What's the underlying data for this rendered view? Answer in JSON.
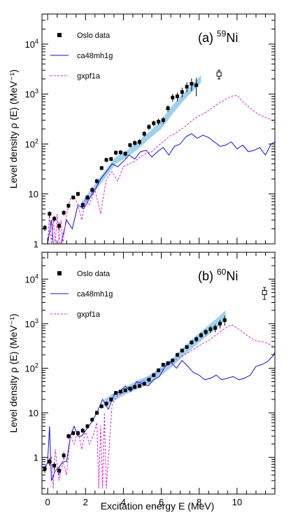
{
  "chart_data": [
    {
      "type": "line",
      "panel_label": "(a)",
      "nucleus_mass": "59",
      "nucleus_symbol": "Ni",
      "xlabel": "Excitation energy E (MeV)",
      "ylabel": "Level density ρ (E) (MeV⁻¹)",
      "xlim": [
        -0.3,
        12.0
      ],
      "ylim": [
        1,
        40000
      ],
      "yscale": "log",
      "x_ticks": [
        0,
        2,
        4,
        6,
        8,
        10
      ],
      "y_ticks": [
        {
          "value": 1,
          "base": "1",
          "exp": ""
        },
        {
          "value": 10,
          "base": "10",
          "exp": ""
        },
        {
          "value": 100,
          "base": "10",
          "exp": "2"
        },
        {
          "value": 1000,
          "base": "10",
          "exp": "3"
        },
        {
          "value": 10000,
          "base": "10",
          "exp": "4"
        }
      ],
      "legend": [
        {
          "name": "Oslo data",
          "style": "square-marker",
          "color": "#000000"
        },
        {
          "name": "ca48mh1g",
          "style": "solid-line",
          "color": "#1010dd"
        },
        {
          "name": "gxpf1a",
          "style": "dashed-line",
          "color": "#dd22dd"
        }
      ],
      "oslo_data": {
        "x": [
          -0.15,
          0.1,
          0.35,
          0.6,
          0.85,
          1.1,
          1.35,
          1.6,
          1.85,
          2.1,
          2.35,
          2.6,
          2.85,
          3.1,
          3.35,
          3.6,
          3.85,
          4.1,
          4.35,
          4.6,
          4.85,
          5.1,
          5.35,
          5.6,
          5.85,
          6.1,
          6.35,
          6.6,
          6.85,
          7.1,
          7.35,
          7.6,
          7.85
        ],
        "y": [
          2.1,
          4.0,
          3.2,
          2.3,
          4.2,
          5.8,
          8.5,
          10,
          6,
          8.5,
          12,
          18,
          33,
          48,
          50,
          67,
          68,
          64,
          95,
          105,
          110,
          160,
          220,
          260,
          280,
          300,
          520,
          850,
          900,
          1100,
          1400,
          1600,
          1500
        ],
        "yerr": [
          0.3,
          0.5,
          0.4,
          0.4,
          0.5,
          0.6,
          0.8,
          1,
          0.8,
          1,
          1.5,
          2,
          3,
          5,
          5,
          7,
          7,
          7,
          10,
          12,
          15,
          20,
          30,
          35,
          40,
          45,
          80,
          150,
          180,
          250,
          320,
          450,
          600
        ]
      },
      "open_point": {
        "x": 9.05,
        "y": 2500,
        "yerr": 500
      },
      "band": {
        "x": [
          1.8,
          2.4,
          3.0,
          3.6,
          4.2,
          4.8,
          5.4,
          6.0,
          6.6,
          7.2,
          7.8,
          8.1
        ],
        "ylow": [
          5.0,
          10,
          20,
          40,
          55,
          80,
          130,
          200,
          400,
          750,
          1300,
          1700
        ],
        "yhigh": [
          7.0,
          14,
          28,
          55,
          75,
          115,
          180,
          300,
          600,
          1050,
          1800,
          2400
        ]
      },
      "series": [
        {
          "name": "ca48mh1g",
          "x": [
            -0.3,
            0.0,
            0.2,
            0.3,
            0.5,
            0.7,
            1.0,
            1.3,
            1.6,
            1.9,
            2.2,
            2.5,
            2.8,
            3.1,
            3.4,
            3.7,
            4.0,
            4.3,
            4.6,
            4.9,
            5.2,
            5.5,
            5.8,
            6.1,
            6.4,
            6.7,
            7.0,
            7.3,
            7.6,
            7.9,
            8.2,
            8.5,
            8.8,
            9.1,
            9.4,
            9.7,
            10.0,
            10.3,
            10.6,
            10.9,
            11.2,
            11.5,
            11.8,
            12.0
          ],
          "y": [
            1,
            1,
            3,
            1,
            1,
            1,
            3,
            2,
            6,
            5,
            8,
            12,
            20,
            28,
            40,
            35,
            45,
            60,
            50,
            70,
            75,
            55,
            70,
            85,
            60,
            90,
            100,
            140,
            160,
            130,
            150,
            135,
            110,
            90,
            95,
            110,
            80,
            95,
            70,
            75,
            85,
            60,
            100,
            110
          ]
        },
        {
          "name": "gxpf1a",
          "x": [
            -0.3,
            0.0,
            0.1,
            0.2,
            0.3,
            0.4,
            0.5,
            0.6,
            0.7,
            0.8,
            1.0,
            1.2,
            1.4,
            1.6,
            1.8,
            2.0,
            2.2,
            2.5,
            2.8,
            3.1,
            3.4,
            3.7,
            4.0,
            4.3,
            4.6,
            4.9,
            5.2,
            5.5,
            5.8,
            6.1,
            6.4,
            6.7,
            7.0,
            7.3,
            7.6,
            7.9,
            8.2,
            8.5,
            8.8,
            9.1,
            9.4,
            9.7,
            10.0,
            10.3,
            10.6,
            10.9,
            11.2,
            11.5,
            11.8,
            12.0
          ],
          "y": [
            1,
            1,
            4,
            1,
            3,
            1,
            4,
            1,
            3,
            1,
            4,
            8,
            9,
            6,
            3,
            8,
            6,
            12,
            4,
            20,
            28,
            18,
            35,
            40,
            45,
            55,
            65,
            70,
            90,
            110,
            140,
            160,
            190,
            230,
            290,
            350,
            400,
            470,
            560,
            680,
            780,
            900,
            950,
            700,
            560,
            450,
            380,
            340,
            310,
            260
          ]
        }
      ]
    },
    {
      "type": "line",
      "panel_label": "(b)",
      "nucleus_mass": "60",
      "nucleus_symbol": "Ni",
      "xlabel": "Excitation energy E (MeV)",
      "ylabel": "Level density ρ (E) (MeV⁻¹)",
      "xlim": [
        -0.3,
        12.0
      ],
      "ylim": [
        0.15,
        40000
      ],
      "yscale": "log",
      "x_ticks": [
        0,
        2,
        4,
        6,
        8,
        10
      ],
      "y_ticks": [
        {
          "value": 1,
          "base": "1",
          "exp": ""
        },
        {
          "value": 10,
          "base": "10",
          "exp": ""
        },
        {
          "value": 100,
          "base": "10",
          "exp": "2"
        },
        {
          "value": 1000,
          "base": "10",
          "exp": "3"
        },
        {
          "value": 10000,
          "base": "10",
          "exp": "4"
        }
      ],
      "legend": [
        {
          "name": "Oslo data",
          "style": "square-marker",
          "color": "#000000"
        },
        {
          "name": "ca48mh1g",
          "style": "solid-line",
          "color": "#1010dd"
        },
        {
          "name": "gxpf1a",
          "style": "dashed-line",
          "color": "#dd22dd"
        }
      ],
      "oslo_data": {
        "x": [
          -0.15,
          0.1,
          0.35,
          0.6,
          0.85,
          1.1,
          1.35,
          1.6,
          1.85,
          2.1,
          2.35,
          2.6,
          2.85,
          3.1,
          3.35,
          3.6,
          3.85,
          4.1,
          4.35,
          4.6,
          4.85,
          5.1,
          5.35,
          5.6,
          5.85,
          6.1,
          6.35,
          6.6,
          6.85,
          7.1,
          7.35,
          7.6,
          7.85,
          8.1,
          8.35,
          8.6,
          8.85,
          9.1,
          9.35
        ],
        "y": [
          0.55,
          0.8,
          0.65,
          0.5,
          1.1,
          3,
          3.5,
          3.5,
          4,
          5,
          7,
          10,
          14,
          16,
          20,
          28,
          30,
          32,
          35,
          38,
          40,
          45,
          55,
          70,
          90,
          120,
          130,
          150,
          200,
          250,
          300,
          380,
          450,
          550,
          650,
          750,
          800,
          1000,
          1200
        ],
        "yerr": [
          0.1,
          0.15,
          0.12,
          0.1,
          0.2,
          0.4,
          0.4,
          0.4,
          0.5,
          0.6,
          0.8,
          1,
          1.5,
          2,
          2,
          3,
          3,
          3,
          4,
          4,
          4,
          5,
          6,
          7,
          9,
          12,
          13,
          15,
          20,
          25,
          30,
          45,
          60,
          80,
          100,
          130,
          160,
          220,
          300
        ]
      },
      "open_point": {
        "x": 11.45,
        "y": 5000,
        "yerr": 1500
      },
      "band": {
        "x": [
          3.0,
          3.6,
          4.2,
          4.8,
          5.4,
          6.0,
          6.6,
          7.2,
          7.8,
          8.4,
          9.0,
          9.4
        ],
        "ylow": [
          13,
          20,
          27,
          35,
          45,
          70,
          110,
          190,
          320,
          520,
          850,
          1200
        ],
        "yhigh": [
          20,
          30,
          40,
          55,
          70,
          110,
          170,
          300,
          520,
          850,
          1400,
          2000
        ]
      },
      "series": [
        {
          "name": "ca48mh1g",
          "x": [
            -0.3,
            -0.1,
            0.0,
            0.1,
            0.2,
            0.4,
            0.6,
            0.8,
            1.0,
            1.2,
            1.4,
            1.6,
            1.8,
            2.0,
            2.3,
            2.6,
            2.9,
            3.2,
            3.5,
            3.8,
            4.1,
            4.4,
            4.7,
            5.0,
            5.3,
            5.6,
            5.9,
            6.2,
            6.5,
            6.8,
            7.1,
            7.4,
            7.7,
            8.0,
            8.3,
            8.6,
            8.9,
            9.2,
            9.5,
            9.8,
            10.1,
            10.4,
            10.7,
            11.0,
            11.3,
            11.6,
            11.9,
            12.0
          ],
          "y": [
            0.6,
            0.6,
            0.8,
            5,
            0.3,
            0.5,
            0.6,
            0.8,
            0.8,
            3,
            5,
            3,
            3,
            4,
            6,
            10,
            20,
            12,
            25,
            30,
            40,
            30,
            50,
            45,
            40,
            55,
            65,
            110,
            140,
            100,
            150,
            110,
            80,
            70,
            55,
            60,
            70,
            55,
            60,
            65,
            55,
            60,
            70,
            110,
            120,
            140,
            190,
            230
          ]
        },
        {
          "name": "gxpf1a",
          "x": [
            -0.3,
            0.0,
            0.2,
            0.3,
            0.4,
            0.6,
            0.8,
            1.0,
            1.2,
            1.4,
            1.6,
            1.8,
            2.0,
            2.2,
            2.4,
            2.6,
            2.7,
            2.8,
            2.9,
            3.0,
            3.1,
            3.4,
            3.7,
            4.0,
            4.3,
            4.6,
            4.9,
            5.2,
            5.5,
            5.8,
            6.1,
            6.4,
            6.7,
            7.0,
            7.3,
            7.6,
            7.9,
            8.2,
            8.5,
            8.8,
            9.1,
            9.4,
            9.7,
            10.0,
            10.3,
            10.6,
            10.9,
            11.2,
            11.5,
            11.8,
            12.0
          ],
          "y": [
            0.6,
            0.7,
            1.0,
            0.2,
            1.5,
            0.3,
            0.8,
            0.4,
            3,
            2,
            4,
            1.5,
            4,
            2,
            3,
            6,
            0.2,
            5,
            0.2,
            10,
            0.2,
            15,
            25,
            28,
            35,
            40,
            50,
            55,
            65,
            80,
            100,
            120,
            150,
            180,
            210,
            250,
            300,
            360,
            420,
            520,
            650,
            800,
            950,
            800,
            650,
            520,
            430,
            400,
            380,
            330,
            300
          ]
        }
      ]
    }
  ]
}
